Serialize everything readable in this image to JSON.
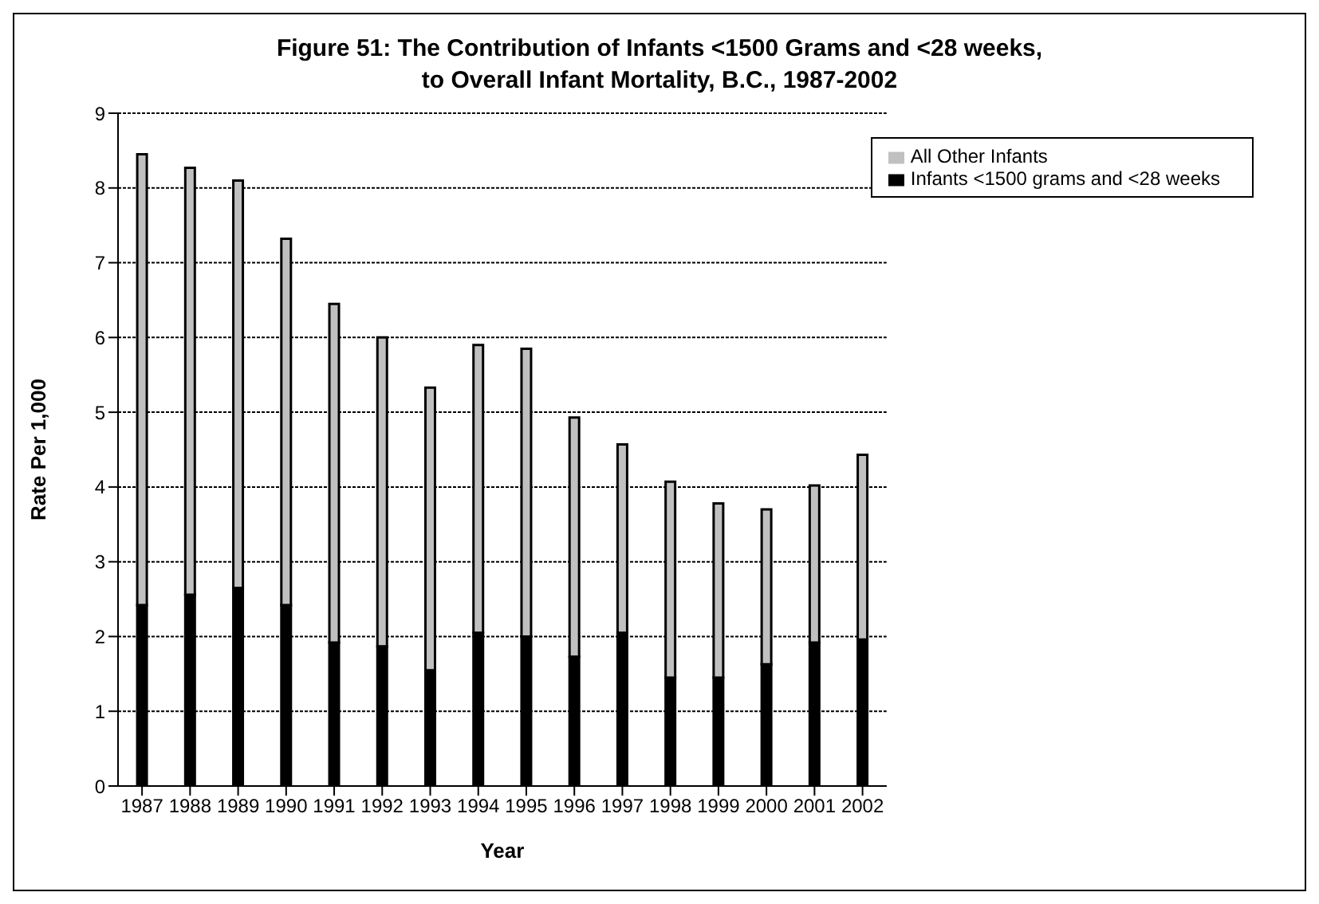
{
  "chart_data": {
    "type": "bar",
    "title": "Figure 51:  The Contribution of Infants <1500 Grams and <28 weeks,\nto Overall Infant Mortality, B.C., 1987-2002",
    "xlabel": "Year",
    "ylabel": "Rate Per 1,000",
    "categories": [
      "1987",
      "1988",
      "1989",
      "1990",
      "1991",
      "1992",
      "1993",
      "1994",
      "1995",
      "1996",
      "1997",
      "1998",
      "1999",
      "2000",
      "2001",
      "2002"
    ],
    "stacked": true,
    "series": [
      {
        "name": "Infants <1500 grams and <28 weeks",
        "color": "#000000",
        "values": [
          2.42,
          2.56,
          2.65,
          2.42,
          1.92,
          1.87,
          1.55,
          2.05,
          2.0,
          1.73,
          2.05,
          1.45,
          1.45,
          1.63,
          1.92,
          1.96
        ]
      },
      {
        "name": "All Other Infants",
        "color": "#c0c0c0",
        "values": [
          6.03,
          5.71,
          5.45,
          4.9,
          4.53,
          4.13,
          3.78,
          3.85,
          3.85,
          3.2,
          2.52,
          2.62,
          2.33,
          2.07,
          2.1,
          2.47
        ]
      }
    ],
    "ylim": [
      0,
      9
    ],
    "yticks": [
      0,
      1,
      2,
      3,
      4,
      5,
      6,
      7,
      8,
      9
    ],
    "grid": "y",
    "legend": "top right"
  }
}
